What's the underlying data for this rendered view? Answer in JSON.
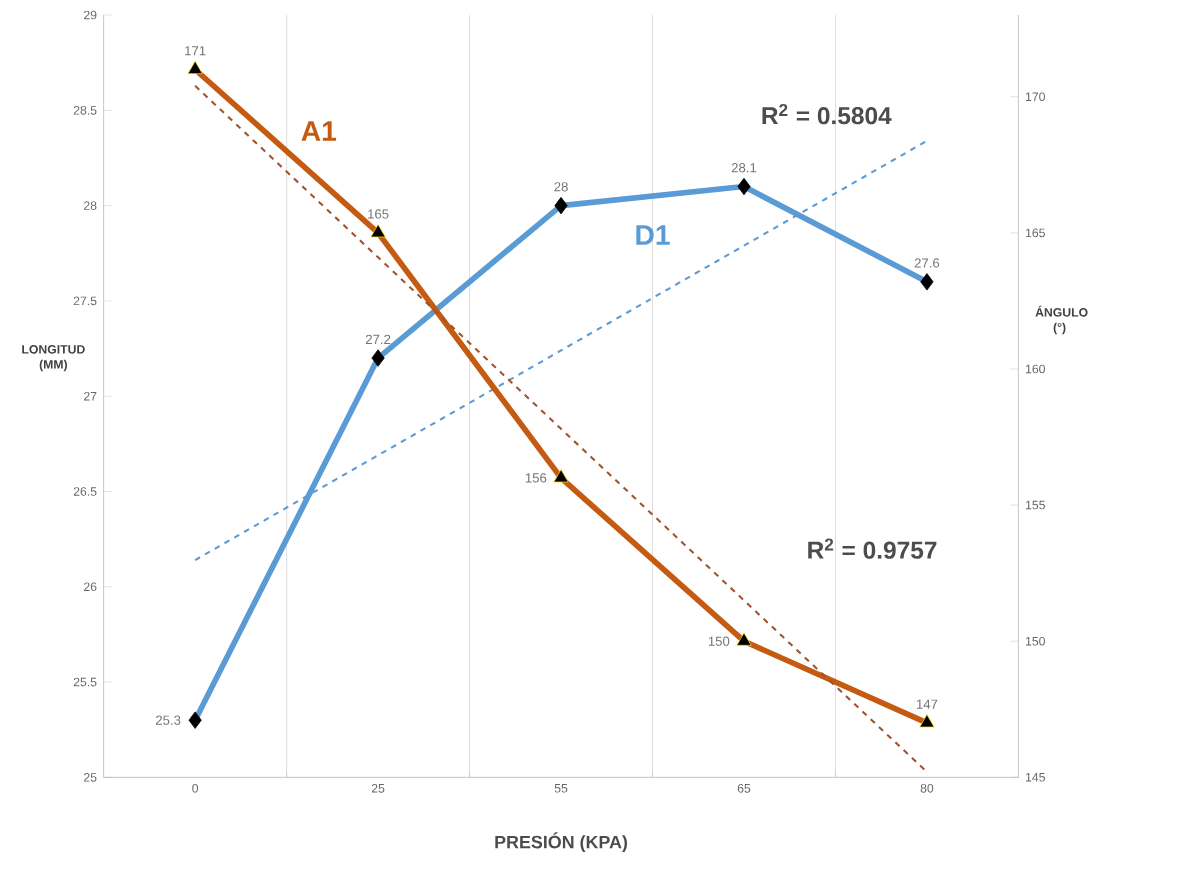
{
  "chart_data": {
    "type": "line",
    "xlabel": "PRESIÓN (KPA)",
    "ylabel": "LONGITUD (MM)",
    "y2label": "ÁNGULO (°)",
    "categories": [
      "0",
      "25",
      "55",
      "65",
      "80"
    ],
    "ylim": [
      25,
      29
    ],
    "yticks": [
      25,
      25.5,
      26,
      26.5,
      27,
      27.5,
      28,
      28.5,
      29
    ],
    "y2lim": [
      145,
      173
    ],
    "y2ticks": [
      145,
      150,
      155,
      160,
      165,
      170
    ],
    "grid": "x",
    "series": [
      {
        "name": "D1",
        "color": "#5b9bd5",
        "values": [
          25.3,
          27.2,
          28,
          28.1,
          27.6
        ],
        "marker": "diamond",
        "line_style": "solid",
        "data_labels": true
      },
      {
        "name": "A1",
        "color": "#c55a11",
        "axis": "y2",
        "values": [
          171,
          165,
          156,
          150,
          147
        ],
        "marker": "triangle",
        "line_style": "solid",
        "data_labels": true
      },
      {
        "color": "#5b9bd5",
        "values": [
          26.14,
          26.69,
          27.24,
          27.79,
          28.34
        ],
        "marker": "none",
        "line_style": "dashed"
      },
      {
        "color": "#a0522d",
        "axis": "y2",
        "values": [
          170.4,
          164.1,
          157.8,
          151.5,
          145.2
        ],
        "marker": "none",
        "line_style": "dashed"
      }
    ],
    "annotations": [
      "R$^{2}$ = 0.5804",
      "R$^{2}$ = 0.9757"
    ]
  }
}
